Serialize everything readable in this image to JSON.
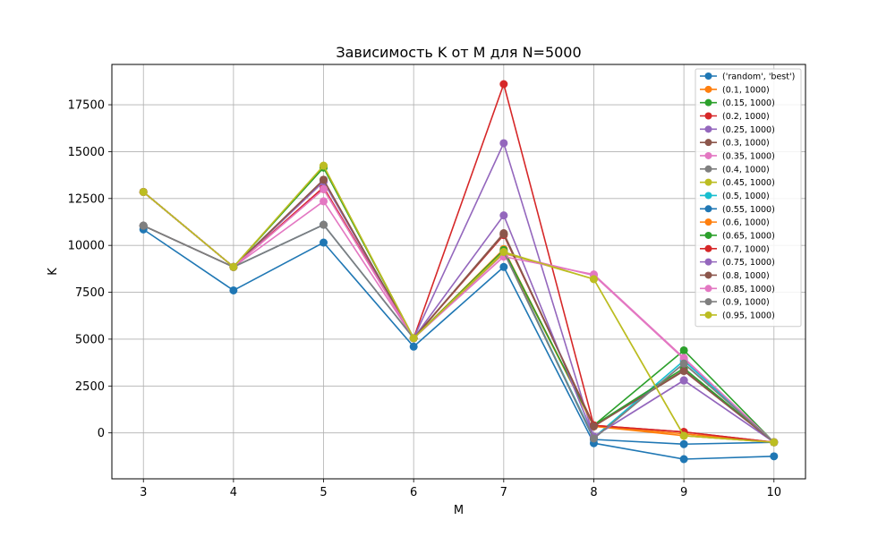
{
  "chart_data": {
    "type": "line",
    "title": "Зависимость K от M для N=5000",
    "xlabel": "M",
    "ylabel": "K",
    "x": [
      3,
      4,
      5,
      6,
      7,
      8,
      9,
      10
    ],
    "xlim": [
      2.65,
      10.35
    ],
    "ylim": [
      -2450,
      19650
    ],
    "x_ticks": [
      3,
      4,
      5,
      6,
      7,
      8,
      9,
      10
    ],
    "y_ticks": [
      0,
      2500,
      5000,
      7500,
      10000,
      12500,
      15000,
      17500
    ],
    "grid": true,
    "legend_position": "top-right",
    "series": [
      {
        "name": "('random', 'best')",
        "color": "#1f77b4",
        "values": [
          10850,
          7600,
          10150,
          4600,
          8850,
          -550,
          -1400,
          -1250
        ]
      },
      {
        "name": "(0.1, 1000)",
        "color": "#ff7f0e",
        "values": [
          12850,
          8850,
          14200,
          5050,
          9800,
          350,
          -50,
          -500
        ]
      },
      {
        "name": "(0.15, 1000)",
        "color": "#2ca02c",
        "values": [
          12850,
          8850,
          14150,
          5050,
          10600,
          400,
          4400,
          -500
        ]
      },
      {
        "name": "(0.2, 1000)",
        "color": "#d62728",
        "values": [
          12850,
          8850,
          13100,
          5050,
          18600,
          400,
          50,
          -500
        ]
      },
      {
        "name": "(0.25, 1000)",
        "color": "#9467bd",
        "values": [
          12850,
          8850,
          13400,
          5050,
          15450,
          -200,
          2800,
          -500
        ]
      },
      {
        "name": "(0.3, 1000)",
        "color": "#8c564b",
        "values": [
          11050,
          8850,
          13500,
          5050,
          10650,
          350,
          3350,
          -500
        ]
      },
      {
        "name": "(0.35, 1000)",
        "color": "#e377c2",
        "values": [
          12850,
          8850,
          12350,
          5050,
          9550,
          8400,
          3950,
          -500
        ]
      },
      {
        "name": "(0.4, 1000)",
        "color": "#7f7f7f",
        "values": [
          11050,
          8850,
          11100,
          5050,
          9650,
          -300,
          3700,
          -500
        ]
      },
      {
        "name": "(0.45, 1000)",
        "color": "#bcbd22",
        "values": [
          12850,
          8850,
          14250,
          5050,
          9600,
          8200,
          -150,
          -500
        ]
      },
      {
        "name": "(0.5, 1000)",
        "color": "#17becf",
        "values": [
          12850,
          8850,
          14200,
          5050,
          9700,
          -250,
          3850,
          -500
        ]
      },
      {
        "name": "(0.55, 1000)",
        "color": "#1f77b4",
        "values": [
          11050,
          8850,
          11100,
          5050,
          9700,
          -350,
          -600,
          -500
        ]
      },
      {
        "name": "(0.6, 1000)",
        "color": "#ff7f0e",
        "values": [
          12850,
          8850,
          14200,
          5050,
          9700,
          350,
          -150,
          -500
        ]
      },
      {
        "name": "(0.65, 1000)",
        "color": "#2ca02c",
        "values": [
          12850,
          8850,
          14150,
          5050,
          9750,
          400,
          3450,
          -500
        ]
      },
      {
        "name": "(0.7, 1000)",
        "color": "#d62728",
        "values": [
          12850,
          8850,
          13000,
          5050,
          10550,
          400,
          50,
          -500
        ]
      },
      {
        "name": "(0.75, 1000)",
        "color": "#9467bd",
        "values": [
          12850,
          8850,
          13400,
          5050,
          11600,
          -200,
          2800,
          -500
        ]
      },
      {
        "name": "(0.8, 1000)",
        "color": "#8c564b",
        "values": [
          11050,
          8850,
          13500,
          5050,
          10600,
          350,
          3300,
          -500
        ]
      },
      {
        "name": "(0.85, 1000)",
        "color": "#e377c2",
        "values": [
          12850,
          8850,
          13000,
          5050,
          9400,
          8450,
          4000,
          -500
        ]
      },
      {
        "name": "(0.9, 1000)",
        "color": "#7f7f7f",
        "values": [
          11050,
          8850,
          11100,
          5050,
          9650,
          -300,
          3700,
          -500
        ]
      },
      {
        "name": "(0.95, 1000)",
        "color": "#bcbd22",
        "values": [
          12850,
          8850,
          14250,
          5050,
          9650,
          8200,
          -150,
          -500
        ]
      }
    ]
  }
}
